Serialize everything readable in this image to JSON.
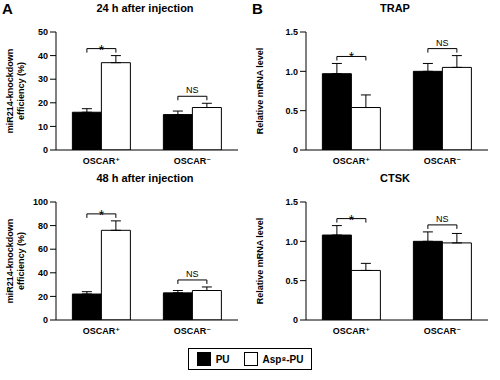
{
  "chart_data": [
    {
      "type": "bar",
      "panel": "A",
      "title": "24 h after injection",
      "y_label": "miR214-knockdown efficiency (%)",
      "categories": [
        "OSCAR⁺",
        "OSCAR⁻"
      ],
      "series": [
        {
          "name": "PU",
          "color": "#000000",
          "values": [
            16,
            15
          ],
          "errors": [
            1.5,
            1.5
          ]
        },
        {
          "name": "Asp⁸-PU",
          "color": "#ffffff",
          "values": [
            37,
            18
          ],
          "errors": [
            3,
            1.8
          ]
        }
      ],
      "ylim": [
        0,
        50
      ],
      "yticks": [
        0,
        10,
        20,
        30,
        40,
        50
      ],
      "annotations": [
        "*",
        "NS"
      ]
    },
    {
      "type": "bar",
      "panel": "B",
      "title": "TRAP",
      "y_label": "Relative mRNA level",
      "categories": [
        "OSCAR⁺",
        "OSCAR⁻"
      ],
      "series": [
        {
          "name": "PU",
          "color": "#000000",
          "values": [
            0.97,
            1.0
          ],
          "errors": [
            0.13,
            0.1
          ]
        },
        {
          "name": "Asp⁸-PU",
          "color": "#ffffff",
          "values": [
            0.54,
            1.05
          ],
          "errors": [
            0.16,
            0.15
          ]
        }
      ],
      "ylim": [
        0,
        1.5
      ],
      "yticks": [
        0,
        0.5,
        {
          "value": 1,
          "label": "1.0"
        },
        1.5
      ],
      "annotations": [
        "*",
        "NS"
      ]
    },
    {
      "type": "bar",
      "title": "48 h after injection",
      "y_label": "miR214-knockdown efficiency (%)",
      "categories": [
        "OSCAR⁺",
        "OSCAR⁻"
      ],
      "series": [
        {
          "name": "PU",
          "color": "#000000",
          "values": [
            22,
            23
          ],
          "errors": [
            2,
            2
          ]
        },
        {
          "name": "Asp⁸-PU",
          "color": "#ffffff",
          "values": [
            76,
            25
          ],
          "errors": [
            8,
            3
          ]
        }
      ],
      "ylim": [
        0,
        100
      ],
      "yticks": [
        0,
        20,
        40,
        60,
        80,
        100
      ],
      "annotations": [
        "*",
        "NS"
      ]
    },
    {
      "type": "bar",
      "title": "CTSK",
      "y_label": "Relative mRNA level",
      "categories": [
        "OSCAR⁺",
        "OSCAR⁻"
      ],
      "series": [
        {
          "name": "PU",
          "color": "#000000",
          "values": [
            1.08,
            1.0
          ],
          "errors": [
            0.12,
            0.12
          ]
        },
        {
          "name": "Asp⁸-PU",
          "color": "#ffffff",
          "values": [
            0.63,
            0.98
          ],
          "errors": [
            0.09,
            0.12
          ]
        }
      ],
      "ylim": [
        0,
        1.5
      ],
      "yticks": [
        0,
        0.5,
        {
          "value": 1,
          "label": "1.0"
        },
        1.5
      ],
      "annotations": [
        "*",
        "NS"
      ]
    }
  ]
}
